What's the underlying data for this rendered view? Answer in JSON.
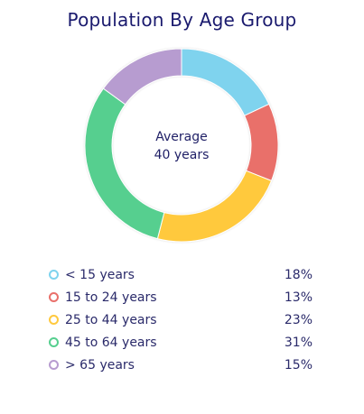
{
  "chart_data": {
    "type": "pie",
    "title": "Population By Age Group",
    "center_label_line1": "Average",
    "center_label_line2": "40 years",
    "categories": [
      "< 15 years",
      "15 to 24 years",
      "25 to 44 years",
      "45 to 64 years",
      "> 65 years"
    ],
    "values": [
      18,
      13,
      23,
      31,
      15
    ],
    "value_labels": [
      "18%",
      "13%",
      "23%",
      "31%",
      "15%"
    ],
    "colors": [
      "#7fd3ee",
      "#e9706b",
      "#ffc93e",
      "#56cf8f",
      "#b79cd0"
    ],
    "legend_placement": "bottom"
  }
}
